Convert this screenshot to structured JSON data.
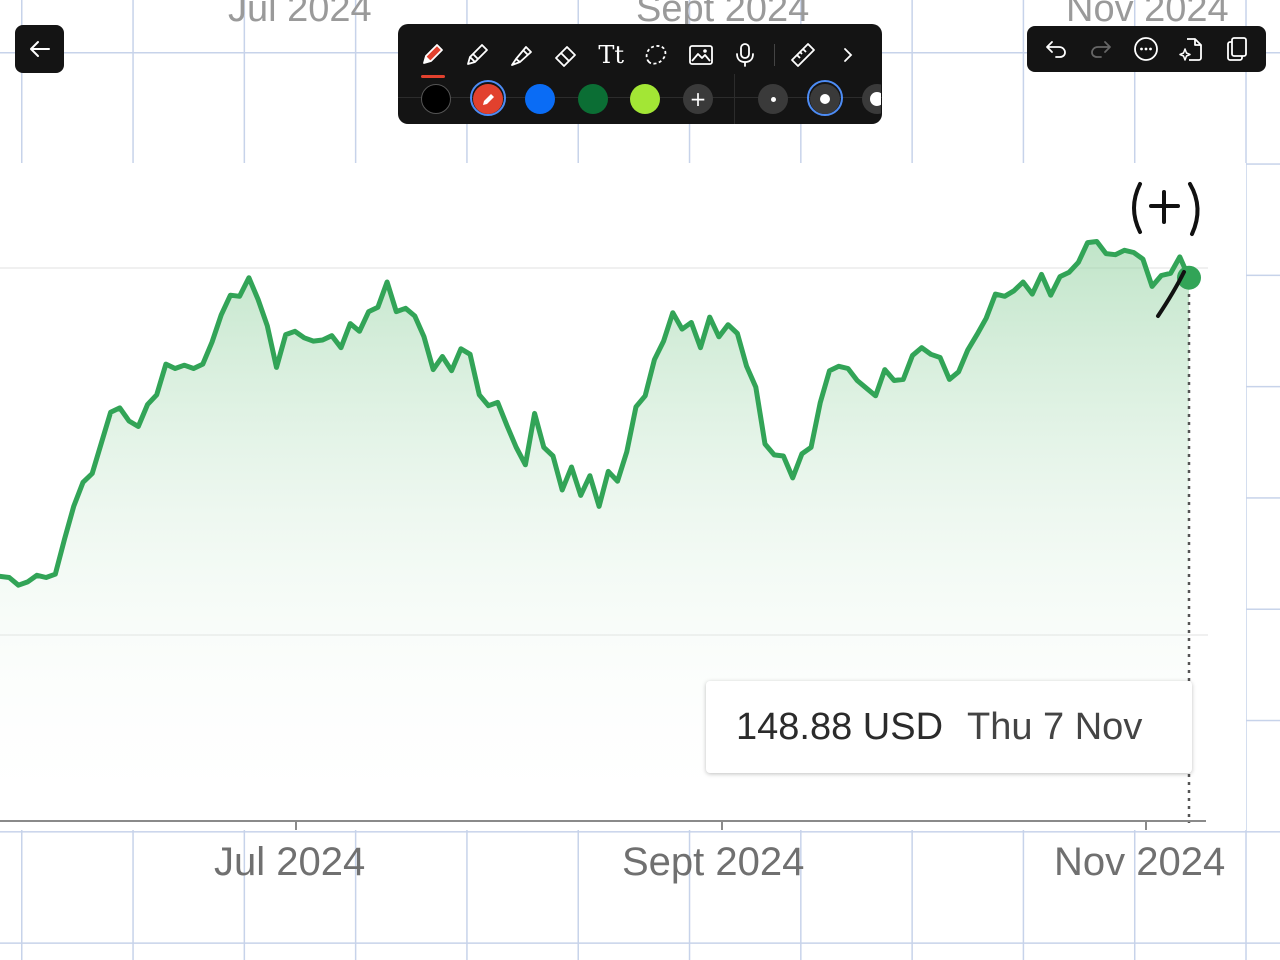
{
  "background_labels": {
    "jul": "Jul 2024",
    "sept": "Sept 2024",
    "nov": "Nov 2024"
  },
  "toolbar": {
    "back_icon": "arrow-left-icon",
    "tools": [
      "pen",
      "pencil",
      "marker",
      "eraser",
      "text",
      "lasso",
      "image",
      "microphone",
      "ruler",
      "more-chevron"
    ],
    "text_tool_label": "Tt",
    "colors": [
      "#000000",
      "#e2412e",
      "#0a6cf5",
      "#0b6e34",
      "#a3e635"
    ],
    "selected_color": "#e2412e",
    "add_color_label": "+",
    "actions": [
      "undo",
      "redo",
      "more",
      "share",
      "copy"
    ]
  },
  "chart_data": {
    "type": "area",
    "x_ticks": [
      "Jul 2024",
      "Sept 2024",
      "Nov 2024"
    ],
    "tooltip": {
      "price": "148.88 USD",
      "date": "Thu 7 Nov"
    },
    "line_color": "#32a457",
    "annotation_text": "(+)",
    "series": [
      {
        "values": [
          121.6,
          121.5,
          120.8,
          121.1,
          121.7,
          121.5,
          121.8,
          125.0,
          128.0,
          130.2,
          131.0,
          133.8,
          136.6,
          137.0,
          135.8,
          135.3,
          137.3,
          138.2,
          141.0,
          140.6,
          140.9,
          140.6,
          141.0,
          143.0,
          145.5,
          147.3,
          147.2,
          148.9,
          146.9,
          144.5,
          140.7,
          143.7,
          144.0,
          143.4,
          143.1,
          143.2,
          143.6,
          142.5,
          144.7,
          144.0,
          145.8,
          146.2,
          148.5,
          145.8,
          146.1,
          145.4,
          143.5,
          140.5,
          141.7,
          140.4,
          142.4,
          141.9,
          138.2,
          137.2,
          137.5,
          135.4,
          133.4,
          131.8,
          136.5,
          133.4,
          132.6,
          129.5,
          131.6,
          129.0,
          130.8,
          128.0,
          131.2,
          130.3,
          133.0,
          137.1,
          138.1,
          141.4,
          143.1,
          145.7,
          144.2,
          144.8,
          142.5,
          145.3,
          143.5,
          144.6,
          143.8,
          140.8,
          138.9,
          133.7,
          132.7,
          132.6,
          130.6,
          132.8,
          133.4,
          137.5,
          140.4,
          140.8,
          140.6,
          139.5,
          138.8,
          138.1,
          140.5,
          139.5,
          139.6,
          141.8,
          142.5,
          141.9,
          141.6,
          139.6,
          140.3,
          142.3,
          143.7,
          145.2,
          147.4,
          147.2,
          147.7,
          148.5,
          147.4,
          149.2,
          147.3,
          149.0,
          149.4,
          150.3,
          152.1,
          152.2,
          151.1,
          151.0,
          151.4,
          151.2,
          150.6,
          148.1,
          149.1,
          149.3,
          150.8,
          148.9
        ]
      }
    ]
  }
}
